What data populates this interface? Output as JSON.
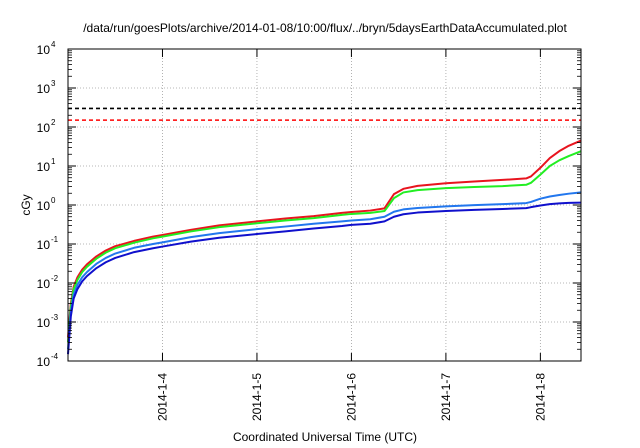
{
  "chart_data": {
    "type": "line",
    "title": "/data/run/goesPlots/archive/2014-01-08/10:00/flux/../bryn/5daysEarthDataAccumulated.plot",
    "xlabel": "Coordinated Universal Time (UTC)",
    "ylabel": "cGy",
    "yscale": "log",
    "ylim": [
      0.0001,
      10000
    ],
    "xlim": [
      3.0,
      8.43
    ],
    "grid": true,
    "legend": "none",
    "y_ticks": [
      {
        "base": "10",
        "exp": "-4",
        "value": 0.0001
      },
      {
        "base": "10",
        "exp": "-3",
        "value": 0.001
      },
      {
        "base": "10",
        "exp": "-2",
        "value": 0.01
      },
      {
        "base": "10",
        "exp": "-1",
        "value": 0.1
      },
      {
        "base": "10",
        "exp": "0",
        "value": 1
      },
      {
        "base": "10",
        "exp": "1",
        "value": 10
      },
      {
        "base": "10",
        "exp": "2",
        "value": 100
      },
      {
        "base": "10",
        "exp": "3",
        "value": 1000
      },
      {
        "base": "10",
        "exp": "4",
        "value": 10000
      }
    ],
    "x_ticks": [
      {
        "label": "2014-1-4",
        "value": 4
      },
      {
        "label": "2014-1-5",
        "value": 5
      },
      {
        "label": "2014-1-6",
        "value": 6
      },
      {
        "label": "2014-1-7",
        "value": 7
      },
      {
        "label": "2014-1-8",
        "value": 8
      }
    ],
    "threshold_lines": [
      {
        "value": 300,
        "color": "#000000"
      },
      {
        "value": 150,
        "color": "#ff0000"
      }
    ],
    "series": [
      {
        "color": "#e8141e",
        "x": [
          3.0,
          3.03,
          3.06,
          3.1,
          3.15,
          3.2,
          3.3,
          3.4,
          3.5,
          3.7,
          3.9,
          4.0,
          4.3,
          4.6,
          5.0,
          5.3,
          5.6,
          5.9,
          6.0,
          6.2,
          6.35,
          6.45,
          6.55,
          6.7,
          7.0,
          7.3,
          7.6,
          7.85,
          7.9,
          8.0,
          8.1,
          8.2,
          8.3,
          8.43
        ],
        "y": [
          0.0004,
          0.003,
          0.008,
          0.014,
          0.022,
          0.03,
          0.048,
          0.068,
          0.088,
          0.12,
          0.155,
          0.17,
          0.23,
          0.3,
          0.38,
          0.45,
          0.52,
          0.63,
          0.66,
          0.72,
          0.82,
          1.9,
          2.6,
          3.1,
          3.6,
          4.0,
          4.4,
          4.8,
          5.4,
          9.0,
          16,
          24,
          33,
          45
        ]
      },
      {
        "color": "#22ee22",
        "x": [
          3.0,
          3.03,
          3.06,
          3.1,
          3.15,
          3.2,
          3.3,
          3.4,
          3.5,
          3.7,
          3.9,
          4.0,
          4.3,
          4.6,
          5.0,
          5.3,
          5.6,
          5.9,
          6.0,
          6.2,
          6.35,
          6.45,
          6.55,
          6.7,
          7.0,
          7.3,
          7.6,
          7.85,
          7.9,
          8.0,
          8.1,
          8.2,
          8.3,
          8.43
        ],
        "y": [
          0.0003,
          0.0025,
          0.007,
          0.012,
          0.019,
          0.026,
          0.042,
          0.06,
          0.078,
          0.108,
          0.14,
          0.155,
          0.21,
          0.27,
          0.34,
          0.4,
          0.46,
          0.56,
          0.59,
          0.63,
          0.7,
          1.5,
          2.1,
          2.4,
          2.7,
          2.9,
          3.05,
          3.3,
          3.7,
          6.0,
          10,
          14,
          18,
          24
        ]
      },
      {
        "color": "#2277ee",
        "x": [
          3.0,
          3.03,
          3.06,
          3.1,
          3.15,
          3.2,
          3.3,
          3.4,
          3.5,
          3.7,
          3.9,
          4.0,
          4.3,
          4.6,
          5.0,
          5.3,
          5.6,
          5.9,
          6.0,
          6.2,
          6.35,
          6.45,
          6.55,
          6.7,
          7.0,
          7.3,
          7.6,
          7.85,
          7.9,
          8.0,
          8.1,
          8.2,
          8.3,
          8.43
        ],
        "y": [
          0.0002,
          0.0018,
          0.005,
          0.009,
          0.014,
          0.019,
          0.031,
          0.044,
          0.057,
          0.08,
          0.1,
          0.11,
          0.15,
          0.19,
          0.24,
          0.28,
          0.33,
          0.38,
          0.4,
          0.43,
          0.5,
          0.67,
          0.77,
          0.84,
          0.92,
          0.99,
          1.05,
          1.12,
          1.2,
          1.45,
          1.65,
          1.8,
          1.95,
          2.1
        ]
      },
      {
        "color": "#1010cc",
        "x": [
          3.0,
          3.03,
          3.06,
          3.1,
          3.15,
          3.2,
          3.3,
          3.4,
          3.5,
          3.7,
          3.9,
          4.0,
          4.3,
          4.6,
          5.0,
          5.3,
          5.6,
          5.9,
          6.0,
          6.2,
          6.35,
          6.45,
          6.55,
          6.7,
          7.0,
          7.3,
          7.6,
          7.85,
          7.9,
          8.0,
          8.1,
          8.2,
          8.3,
          8.43
        ],
        "y": [
          0.00015,
          0.0014,
          0.004,
          0.007,
          0.011,
          0.015,
          0.024,
          0.034,
          0.044,
          0.062,
          0.078,
          0.086,
          0.115,
          0.145,
          0.18,
          0.21,
          0.25,
          0.29,
          0.31,
          0.33,
          0.38,
          0.5,
          0.58,
          0.64,
          0.7,
          0.75,
          0.79,
          0.83,
          0.88,
          0.97,
          1.05,
          1.1,
          1.13,
          1.15
        ]
      }
    ]
  }
}
